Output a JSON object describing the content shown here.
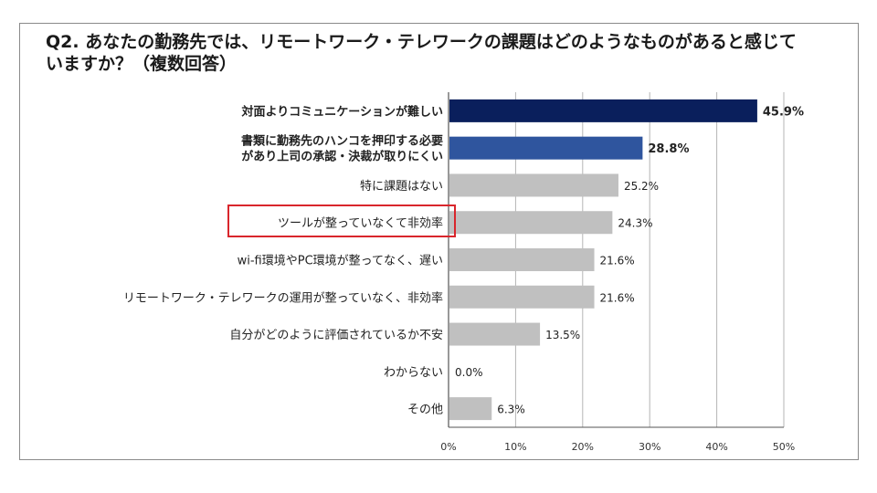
{
  "title": "Q2. あなたの勤務先では、リモートワーク・テレワークの課題はどのようなものがあると感じて\nいますか？（複数回答）",
  "chart_data": {
    "type": "bar",
    "orientation": "horizontal",
    "categories": [
      [
        "対面よりコミュニケーションが難しい"
      ],
      [
        "書類に勤務先のハンコを押印する必要",
        "があり上司の承認・決裁が取りにくい"
      ],
      [
        "特に課題はない"
      ],
      [
        "ツールが整っていなくて非効率"
      ],
      [
        "wi-fi環境やPC環境が整ってなく、遅い"
      ],
      [
        "リモートワーク・テレワークの運用が整っていなく、非効率"
      ],
      [
        "自分がどのように評価されているか不安"
      ],
      [
        "わからない"
      ],
      [
        "その他"
      ]
    ],
    "values": [
      45.9,
      28.8,
      25.2,
      24.3,
      21.6,
      21.6,
      13.5,
      0.0,
      6.3
    ],
    "value_labels": [
      "45.9%",
      "28.8%",
      "25.2%",
      "24.3%",
      "21.6%",
      "21.6%",
      "13.5%",
      "0.0%",
      "6.3%"
    ],
    "bar_colors": [
      "#0a1f5c",
      "#2f559e",
      "#c0c0c0",
      "#c0c0c0",
      "#c0c0c0",
      "#c0c0c0",
      "#c0c0c0",
      "#c0c0c0",
      "#c0c0c0"
    ],
    "emphasized": [
      true,
      true,
      false,
      false,
      false,
      false,
      false,
      false,
      false
    ],
    "highlighted_category_index": 3,
    "highlight_color": "#d9262c",
    "xlim": [
      0,
      50
    ],
    "xticks": [
      0,
      10,
      20,
      30,
      40,
      50
    ],
    "xtick_labels": [
      "0%",
      "10%",
      "20%",
      "30%",
      "40%",
      "50%"
    ],
    "grid": true
  }
}
